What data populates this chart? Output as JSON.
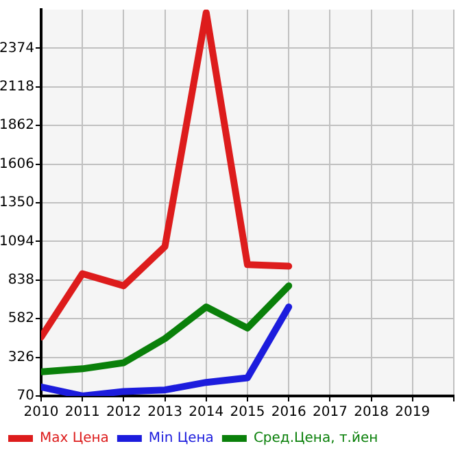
{
  "chart_data": {
    "type": "line",
    "x": [
      2010,
      2011,
      2012,
      2013,
      2014,
      2015,
      2016
    ],
    "series": [
      {
        "name": "Max Цена",
        "color": "#dd1c1c",
        "values": [
          460,
          880,
          800,
          1060,
          2610,
          940,
          930
        ]
      },
      {
        "name": "Min Цена",
        "color": "#1c1cdd",
        "values": [
          130,
          70,
          100,
          110,
          160,
          190,
          660
        ]
      },
      {
        "name": "Сред.Цена, т.йен",
        "color": "#0a800a",
        "values": [
          230,
          250,
          290,
          450,
          660,
          520,
          800
        ]
      }
    ],
    "xlim": [
      2010,
      2020
    ],
    "xticks": [
      2010,
      2011,
      2012,
      2013,
      2014,
      2015,
      2016,
      2017,
      2018,
      2019,
      {
        "value": 2020,
        "label": null
      }
    ],
    "ylim": [
      70,
      2630
    ],
    "yticks": [
      70,
      326,
      582,
      838,
      1094,
      1350,
      1606,
      1862,
      2118,
      2374
    ],
    "grid": true,
    "legend": "bottom",
    "marker": "none",
    "line_style": "solid"
  }
}
